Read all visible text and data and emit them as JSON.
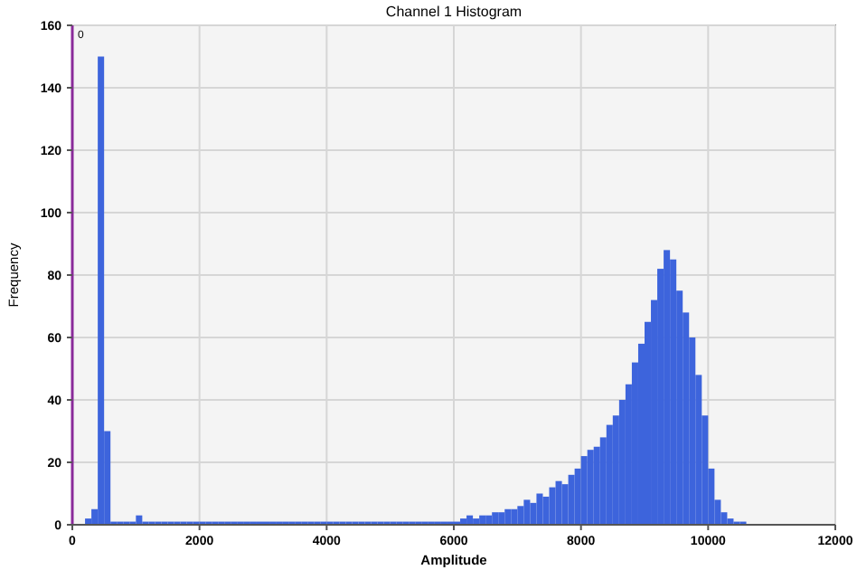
{
  "chart_data": {
    "type": "histogram",
    "title": "Channel 1 Histogram",
    "xlabel": "Amplitude",
    "ylabel": "Frequency",
    "color": "#3d64dc",
    "bins": [
      0,
      100,
      200,
      300,
      400,
      500,
      600,
      700,
      800,
      900,
      1000,
      1100,
      1200,
      1300,
      1400,
      1500,
      1600,
      1700,
      1800,
      1900,
      2000,
      2100,
      2200,
      2300,
      2400,
      2500,
      2600,
      2700,
      2800,
      2900,
      3000,
      3100,
      3200,
      3300,
      3400,
      3500,
      3600,
      3700,
      3800,
      3900,
      4000,
      4100,
      4200,
      4300,
      4400,
      4500,
      4600,
      4700,
      4800,
      4900,
      5000,
      5100,
      5200,
      5300,
      5400,
      5500,
      5600,
      5700,
      5800,
      5900,
      6000,
      6100,
      6200,
      6300,
      6400,
      6500,
      6600,
      6700,
      6800,
      6900,
      7000,
      7100,
      7200,
      7300,
      7400,
      7500,
      7600,
      7700,
      7800,
      7900,
      8000,
      8100,
      8200,
      8300,
      8400,
      8500,
      8600,
      8700,
      8800,
      8900,
      9000,
      9100,
      9200,
      9300,
      9400,
      9500,
      9600,
      9700,
      9800,
      9900,
      10000,
      10100,
      10200,
      10300,
      10400,
      10500,
      10600
    ],
    "values": [
      0,
      0,
      2,
      5,
      150,
      30,
      1,
      1,
      1,
      1,
      3,
      1,
      1,
      1,
      1,
      1,
      1,
      1,
      1,
      1,
      1,
      1,
      1,
      1,
      1,
      1,
      1,
      1,
      1,
      1,
      1,
      1,
      1,
      1,
      1,
      1,
      1,
      1,
      1,
      1,
      1,
      1,
      1,
      1,
      1,
      1,
      1,
      1,
      1,
      1,
      1,
      1,
      1,
      1,
      1,
      1,
      1,
      1,
      1,
      1,
      1,
      2,
      3,
      2,
      3,
      3,
      4,
      4,
      5,
      5,
      6,
      8,
      7,
      10,
      9,
      12,
      14,
      13,
      16,
      18,
      22,
      24,
      25,
      28,
      32,
      35,
      40,
      45,
      52,
      58,
      65,
      72,
      82,
      88,
      85,
      75,
      68,
      60,
      48,
      35,
      18,
      8,
      4,
      2,
      1,
      1
    ],
    "xlim": [
      0,
      12000
    ],
    "xticks": [
      0,
      2000,
      4000,
      6000,
      8000,
      10000,
      12000
    ],
    "ylim": [
      0,
      160
    ],
    "yticks": [
      0,
      20,
      40,
      60,
      80,
      100,
      120,
      140,
      160
    ],
    "grid": true,
    "annotations": [
      "0"
    ]
  }
}
